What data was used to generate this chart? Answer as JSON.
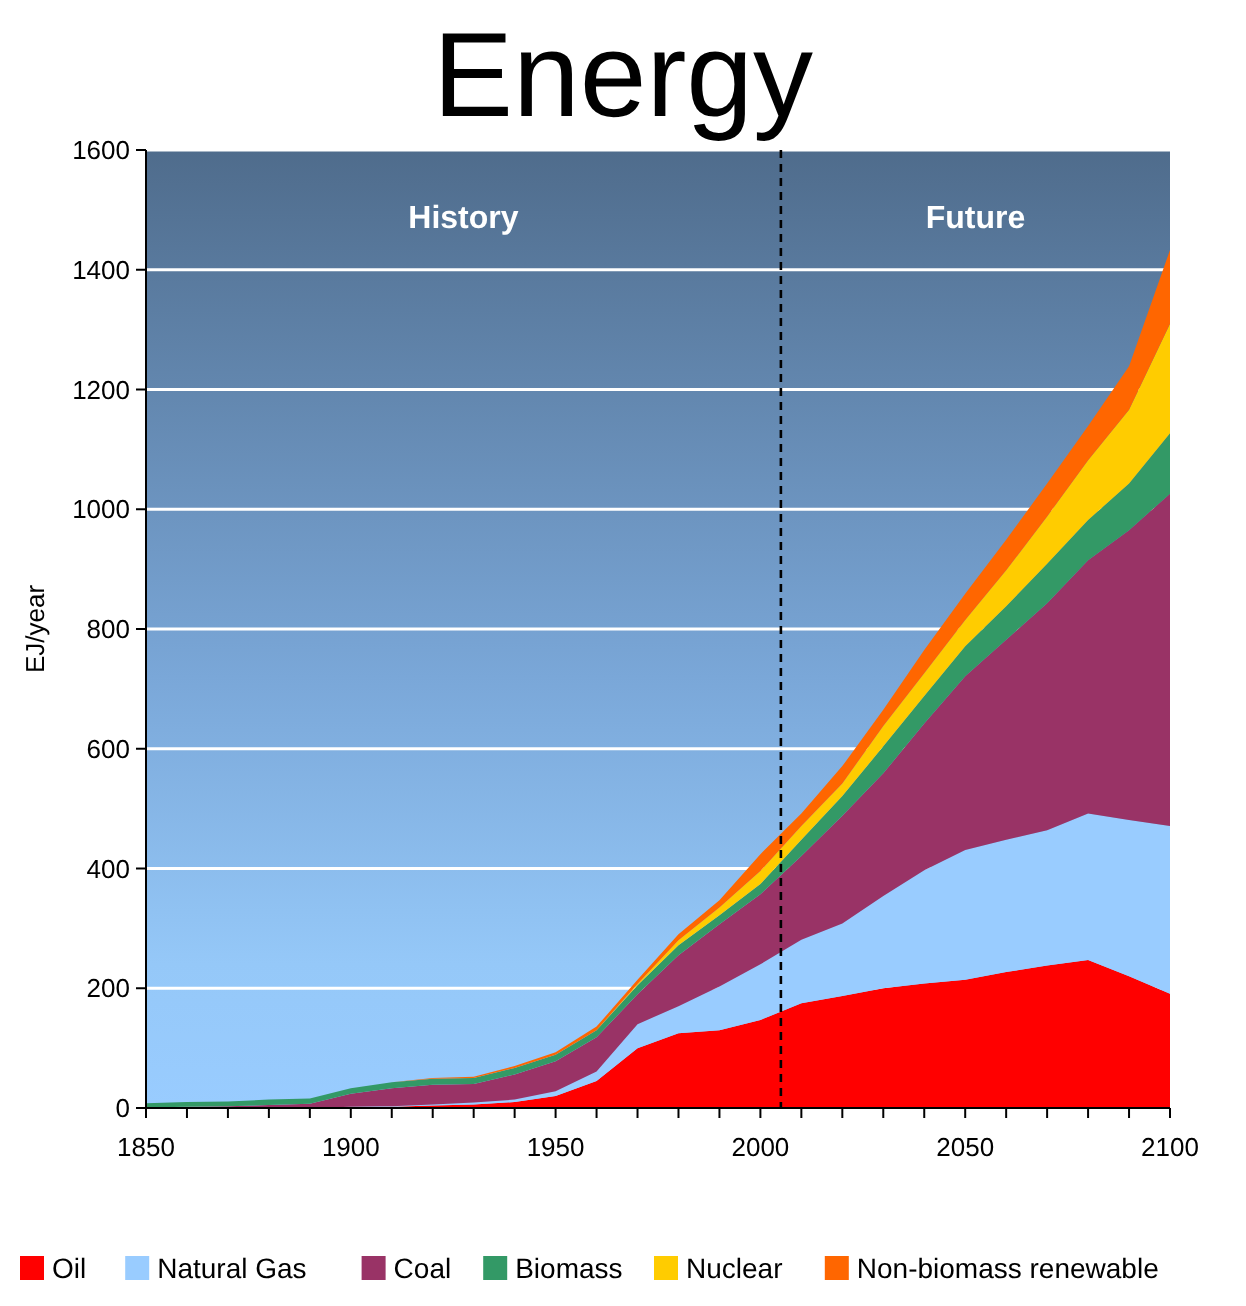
{
  "chart_data": {
    "type": "area",
    "stacked": true,
    "title": "Energy",
    "ylabel": "EJ/year",
    "x": [
      1850,
      1860,
      1870,
      1880,
      1890,
      1900,
      1910,
      1920,
      1930,
      1940,
      1950,
      1960,
      1970,
      1980,
      1990,
      2000,
      2010,
      2020,
      2030,
      2040,
      2050,
      2060,
      2070,
      2080,
      2090,
      2100
    ],
    "series": [
      {
        "name": "Oil",
        "color": "#ff0000",
        "values": [
          0,
          0,
          0,
          0,
          0,
          1,
          2,
          4,
          6,
          10,
          20,
          45,
          100,
          125,
          130,
          147,
          175,
          187,
          200,
          208,
          214,
          227,
          238,
          247,
          220,
          191
        ]
      },
      {
        "name": "Natural Gas",
        "color": "#99ccff",
        "values": [
          0,
          0,
          0,
          0,
          0,
          1,
          1,
          2,
          3,
          4,
          8,
          16,
          40,
          45,
          73,
          93,
          106,
          121,
          154,
          189,
          217,
          221,
          226,
          245,
          261,
          280
        ]
      },
      {
        "name": "Coal",
        "color": "#993366",
        "values": [
          1,
          2,
          3,
          5,
          7,
          22,
          30,
          33,
          31,
          42,
          50,
          57,
          50,
          85,
          104,
          117,
          140,
          180,
          205,
          245,
          290,
          334,
          379,
          423,
          484,
          555
        ]
      },
      {
        "name": "Biomass",
        "color": "#339966",
        "values": [
          7,
          8,
          8,
          9,
          9,
          9,
          10,
          10,
          10,
          11,
          11,
          12,
          15,
          17,
          15,
          17,
          27,
          33,
          45,
          46,
          50,
          56,
          66,
          67,
          78,
          101
        ]
      },
      {
        "name": "Nuclear",
        "color": "#ffcc00",
        "values": [
          0,
          0,
          0,
          0,
          0,
          0,
          0,
          0,
          0,
          0,
          0,
          0,
          2,
          8,
          13,
          22,
          23,
          21,
          34,
          38,
          44,
          60,
          79,
          100,
          123,
          183
        ]
      },
      {
        "name": "Non-biomass renewable",
        "color": "#ff6600",
        "values": [
          0,
          0,
          0,
          0,
          0,
          0,
          0,
          1,
          2,
          3,
          4,
          6,
          7,
          10,
          12,
          28,
          21,
          29,
          27,
          39,
          44,
          51,
          55,
          57,
          73,
          123
        ]
      }
    ],
    "xlim": [
      1850,
      2100
    ],
    "xticks": [
      1850,
      {
        "value": 1860,
        "label": null
      },
      {
        "value": 1870,
        "label": null
      },
      {
        "value": 1880,
        "label": null
      },
      {
        "value": 1890,
        "label": null
      },
      1900,
      {
        "value": 1910,
        "label": null
      },
      {
        "value": 1920,
        "label": null
      },
      {
        "value": 1930,
        "label": null
      },
      {
        "value": 1940,
        "label": null
      },
      1950,
      {
        "value": 1960,
        "label": null
      },
      {
        "value": 1970,
        "label": null
      },
      {
        "value": 1980,
        "label": null
      },
      {
        "value": 1990,
        "label": null
      },
      2000,
      {
        "value": 2010,
        "label": null
      },
      {
        "value": 2020,
        "label": null
      },
      {
        "value": 2030,
        "label": null
      },
      {
        "value": 2040,
        "label": null
      },
      2050,
      {
        "value": 2060,
        "label": null
      },
      {
        "value": 2070,
        "label": null
      },
      {
        "value": 2080,
        "label": null
      },
      {
        "value": 2090,
        "label": null
      },
      2100
    ],
    "ylim": [
      0,
      1600
    ],
    "yticks": [
      0,
      200,
      400,
      600,
      800,
      1000,
      1200,
      1400,
      1600
    ],
    "grid": "y",
    "legend": "bottom",
    "ref_lines": [
      {
        "axis": "x",
        "value": 2005,
        "color": "#000000",
        "line_style": "dashed"
      }
    ],
    "annotations": [
      "History",
      "Future"
    ]
  }
}
